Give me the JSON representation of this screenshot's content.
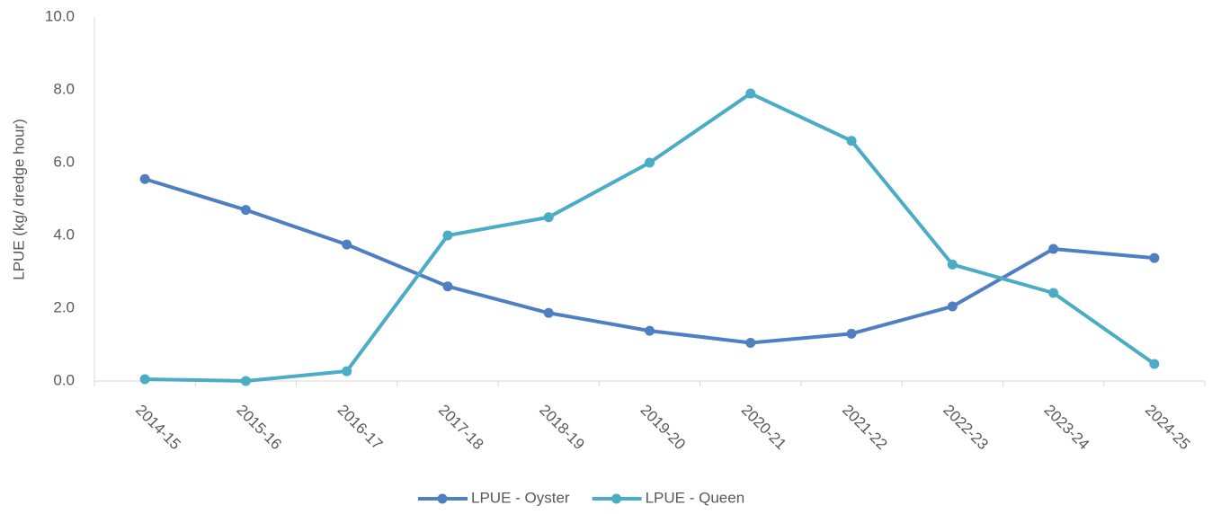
{
  "chart_data": {
    "type": "line",
    "y_label": "LPUE (kg/ dredge hour)",
    "categories": [
      "2014-15",
      "2015-16",
      "2016-17",
      "2017-18",
      "2018-19",
      "2019-20",
      "2020-21",
      "2021-22",
      "2022-23",
      "2023-24",
      "2024-25"
    ],
    "series": [
      {
        "name": "LPUE - Oyster",
        "color": "#4f7fc1",
        "values": [
          5.55,
          4.7,
          3.75,
          2.6,
          1.87,
          1.38,
          1.05,
          1.3,
          2.05,
          3.63,
          3.38
        ]
      },
      {
        "name": "LPUE - Queen",
        "color": "#4bacc6",
        "values": [
          0.05,
          0.0,
          0.27,
          4.0,
          4.5,
          6.0,
          7.9,
          6.6,
          3.2,
          2.42,
          0.47
        ]
      }
    ],
    "ylim": [
      0,
      10
    ],
    "yticks": [
      {
        "value": 0,
        "label": "0.0"
      },
      {
        "value": 2,
        "label": "2.0"
      },
      {
        "value": 4,
        "label": "4.0"
      },
      {
        "value": 6,
        "label": "6.0"
      },
      {
        "value": 8,
        "label": "8.0"
      },
      {
        "value": 10,
        "label": "10.0"
      }
    ],
    "legend": "bottom"
  }
}
